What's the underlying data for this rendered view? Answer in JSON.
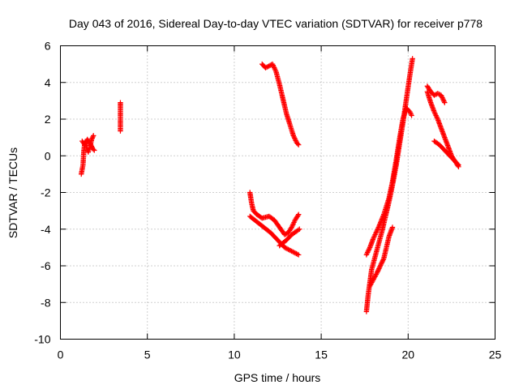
{
  "chart_data": {
    "type": "scatter",
    "title": "Day 043 of 2016, Sidereal Day-to-day VTEC variation (SDTVAR) for receiver p778",
    "xlabel": "GPS time / hours",
    "ylabel": "SDTVAR / TECUs",
    "xlim": [
      0,
      25
    ],
    "ylim": [
      -10,
      6
    ],
    "x_ticks": [
      "0",
      "5",
      "10",
      "15",
      "20",
      "25"
    ],
    "y_ticks": [
      "-10",
      "-8",
      "-6",
      "-4",
      "-2",
      "0",
      "2",
      "4",
      "6"
    ],
    "grid": true,
    "legend": "none",
    "marker": "plus",
    "series_color": "#ff0000",
    "segments": [
      [
        [
          1.2,
          -1.0
        ],
        [
          1.3,
          -0.5
        ],
        [
          1.35,
          0.3
        ],
        [
          1.4,
          0.7
        ],
        [
          1.5,
          0.5
        ],
        [
          1.6,
          0.2
        ],
        [
          1.7,
          0.5
        ],
        [
          1.8,
          0.9
        ],
        [
          1.9,
          1.1
        ]
      ],
      [
        [
          1.25,
          0.8
        ],
        [
          1.4,
          0.6
        ],
        [
          1.55,
          0.9
        ],
        [
          1.7,
          0.7
        ],
        [
          1.85,
          0.4
        ],
        [
          1.95,
          0.3
        ]
      ],
      [
        [
          3.45,
          2.9
        ],
        [
          3.45,
          2.5
        ],
        [
          3.45,
          1.7
        ],
        [
          3.45,
          1.35
        ]
      ],
      [
        [
          11.6,
          5.0
        ],
        [
          11.8,
          4.8
        ],
        [
          12.0,
          4.9
        ],
        [
          12.2,
          5.0
        ],
        [
          12.4,
          4.6
        ],
        [
          12.6,
          3.9
        ],
        [
          12.8,
          3.1
        ],
        [
          13.0,
          2.3
        ],
        [
          13.2,
          1.7
        ],
        [
          13.4,
          1.1
        ],
        [
          13.6,
          0.7
        ],
        [
          13.7,
          0.6
        ]
      ],
      [
        [
          10.9,
          -2.0
        ],
        [
          11.0,
          -2.6
        ],
        [
          11.1,
          -3.0
        ],
        [
          11.3,
          -3.2
        ],
        [
          11.6,
          -3.4
        ],
        [
          12.0,
          -3.3
        ],
        [
          12.3,
          -3.5
        ],
        [
          12.6,
          -3.9
        ],
        [
          12.9,
          -4.3
        ],
        [
          13.1,
          -4.2
        ],
        [
          13.3,
          -3.9
        ],
        [
          13.5,
          -3.5
        ],
        [
          13.7,
          -3.2
        ]
      ],
      [
        [
          10.9,
          -3.3
        ],
        [
          11.3,
          -3.6
        ],
        [
          11.7,
          -3.9
        ],
        [
          12.1,
          -4.2
        ],
        [
          12.5,
          -4.6
        ],
        [
          12.9,
          -5.0
        ],
        [
          13.3,
          -5.2
        ],
        [
          13.7,
          -5.4
        ]
      ],
      [
        [
          12.6,
          -4.9
        ],
        [
          13.0,
          -4.6
        ],
        [
          13.3,
          -4.3
        ],
        [
          13.6,
          -4.1
        ],
        [
          13.75,
          -4.0
        ]
      ],
      [
        [
          17.6,
          -8.5
        ],
        [
          17.7,
          -7.6
        ],
        [
          17.8,
          -6.9
        ],
        [
          17.9,
          -6.2
        ],
        [
          18.1,
          -5.5
        ],
        [
          18.3,
          -4.8
        ],
        [
          18.5,
          -4.1
        ],
        [
          18.7,
          -3.3
        ],
        [
          18.9,
          -2.5
        ],
        [
          19.1,
          -1.6
        ],
        [
          19.3,
          -0.6
        ],
        [
          19.5,
          0.6
        ],
        [
          19.7,
          1.8
        ],
        [
          19.9,
          3.1
        ],
        [
          20.1,
          4.4
        ],
        [
          20.25,
          5.3
        ]
      ],
      [
        [
          17.6,
          -5.4
        ],
        [
          17.8,
          -5.0
        ],
        [
          18.0,
          -4.5
        ],
        [
          18.3,
          -3.9
        ],
        [
          18.6,
          -3.2
        ],
        [
          18.9,
          -2.3
        ],
        [
          19.1,
          -1.4
        ],
        [
          19.3,
          -0.3
        ],
        [
          19.5,
          0.9
        ],
        [
          19.7,
          2.0
        ],
        [
          19.9,
          2.6
        ],
        [
          20.1,
          2.4
        ],
        [
          20.2,
          2.2
        ]
      ],
      [
        [
          17.8,
          -7.1
        ],
        [
          18.2,
          -6.4
        ],
        [
          18.6,
          -5.6
        ],
        [
          18.9,
          -4.4
        ],
        [
          19.1,
          -3.9
        ]
      ],
      [
        [
          21.1,
          3.8
        ],
        [
          21.3,
          3.5
        ],
        [
          21.5,
          3.3
        ],
        [
          21.7,
          3.4
        ],
        [
          21.9,
          3.3
        ],
        [
          22.1,
          2.9
        ]
      ],
      [
        [
          21.1,
          3.5
        ],
        [
          21.3,
          2.9
        ],
        [
          21.5,
          2.4
        ],
        [
          21.7,
          2.0
        ],
        [
          21.9,
          1.5
        ],
        [
          22.1,
          1.0
        ],
        [
          22.3,
          0.5
        ],
        [
          22.5,
          0.0
        ],
        [
          22.7,
          -0.3
        ],
        [
          22.9,
          -0.6
        ]
      ],
      [
        [
          21.5,
          0.8
        ],
        [
          21.8,
          0.6
        ],
        [
          22.1,
          0.3
        ],
        [
          22.4,
          0.0
        ],
        [
          22.7,
          -0.3
        ],
        [
          22.9,
          -0.5
        ]
      ]
    ]
  }
}
